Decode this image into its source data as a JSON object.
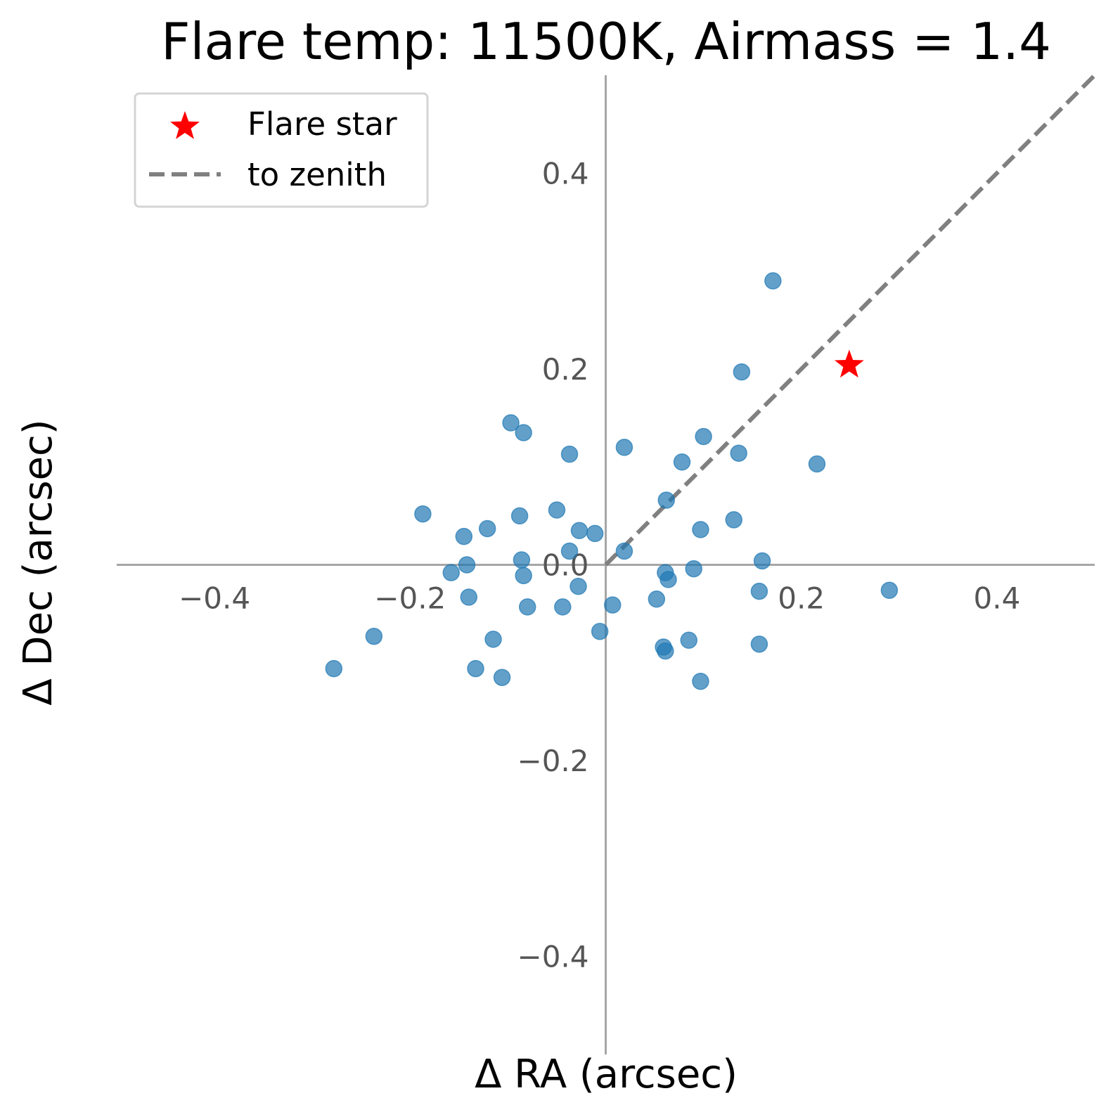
{
  "chart_data": {
    "type": "scatter",
    "title": "Flare temp: 11500K, Airmass = 1.4",
    "xlabel": "Δ RA (arcsec)",
    "ylabel": "Δ Dec (arcsec)",
    "xlim": [
      -0.5,
      0.5
    ],
    "ylim": [
      -0.5,
      0.5
    ],
    "xticks": [
      {
        "value": -0.4,
        "label": "−0.4"
      },
      {
        "value": -0.2,
        "label": "−0.2"
      },
      {
        "value": 0.2,
        "label": "0.2"
      },
      {
        "value": 0.4,
        "label": "0.4"
      }
    ],
    "yticks": [
      {
        "value": 0.4,
        "label": "0.4"
      },
      {
        "value": 0.2,
        "label": "0.2"
      },
      {
        "value": 0.0,
        "label": "0.0"
      },
      {
        "value": -0.2,
        "label": "−0.2"
      },
      {
        "value": -0.4,
        "label": "−0.4"
      }
    ],
    "grid": false,
    "spines": "centered-at-origin",
    "legend_placement": "upper-left",
    "legend": [
      {
        "label": "Flare star",
        "marker": "star",
        "color": "#ff0000"
      },
      {
        "label": "to zenith",
        "marker": "dashed-line",
        "color": "#808080"
      }
    ],
    "series": [
      {
        "marker": "circle",
        "color": "#1f77b4",
        "points": [
          [
            0.171,
            0.29
          ],
          [
            0.139,
            0.197
          ],
          [
            0.1,
            0.131
          ],
          [
            0.136,
            0.114
          ],
          [
            0.019,
            0.12
          ],
          [
            0.078,
            0.105
          ],
          [
            0.216,
            0.103
          ],
          [
            0.062,
            0.066
          ],
          [
            0.131,
            0.046
          ],
          [
            0.097,
            0.036
          ],
          [
            0.16,
            0.004
          ],
          [
            0.09,
            -0.004
          ],
          [
            0.061,
            -0.008
          ],
          [
            0.064,
            -0.015
          ],
          [
            0.157,
            -0.027
          ],
          [
            0.019,
            0.014
          ],
          [
            0.007,
            -0.041
          ],
          [
            -0.006,
            -0.068
          ],
          [
            0.052,
            -0.035
          ],
          [
            0.085,
            -0.077
          ],
          [
            0.059,
            -0.084
          ],
          [
            0.061,
            -0.088
          ],
          [
            0.097,
            -0.119
          ],
          [
            0.157,
            -0.081
          ],
          [
            0.29,
            -0.026
          ],
          [
            -0.097,
            0.145
          ],
          [
            -0.084,
            0.135
          ],
          [
            -0.037,
            0.113
          ],
          [
            -0.187,
            0.052
          ],
          [
            -0.088,
            0.05
          ],
          [
            -0.05,
            0.056
          ],
          [
            -0.027,
            0.035
          ],
          [
            -0.011,
            0.032
          ],
          [
            -0.121,
            0.037
          ],
          [
            -0.145,
            0.029
          ],
          [
            -0.037,
            0.014
          ],
          [
            -0.086,
            0.005
          ],
          [
            -0.142,
            0.0
          ],
          [
            -0.158,
            -0.008
          ],
          [
            -0.084,
            -0.011
          ],
          [
            -0.028,
            -0.022
          ],
          [
            -0.14,
            -0.033
          ],
          [
            -0.08,
            -0.043
          ],
          [
            -0.044,
            -0.043
          ],
          [
            -0.237,
            -0.073
          ],
          [
            -0.115,
            -0.076
          ],
          [
            -0.278,
            -0.106
          ],
          [
            -0.133,
            -0.106
          ],
          [
            -0.106,
            -0.115
          ]
        ]
      }
    ],
    "highlight": {
      "name": "Flare star",
      "marker": "star",
      "color": "#ff0000",
      "point": [
        0.249,
        0.204
      ]
    },
    "zenith_line": {
      "name": "to zenith",
      "style": "dashed",
      "color": "#808080",
      "from": [
        0.0,
        0.0
      ],
      "to": [
        0.5,
        0.5
      ]
    }
  }
}
